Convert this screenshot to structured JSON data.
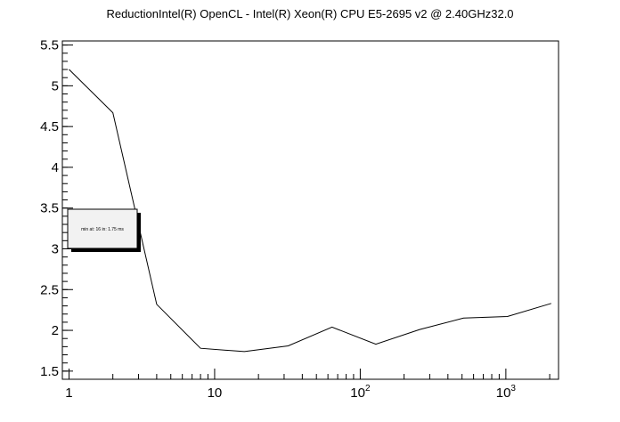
{
  "chart_data": {
    "type": "line",
    "title": "ReductionIntel(R) OpenCL -       Intel(R) Xeon(R) CPU E5-2695 v2 @ 2.40GHz32.0",
    "xlabel": "",
    "ylabel": "",
    "x_scale": "log",
    "xlim": [
      0.9,
      2300
    ],
    "ylim": [
      1.4,
      5.55
    ],
    "x_ticks": [
      {
        "value": 1,
        "base": "1",
        "exp": ""
      },
      {
        "value": 10,
        "base": "10",
        "exp": ""
      },
      {
        "value": 100,
        "base": "10",
        "exp": "2"
      },
      {
        "value": 1000,
        "base": "10",
        "exp": "3"
      }
    ],
    "y_ticks": [
      1.5,
      2,
      2.5,
      3,
      3.5,
      4,
      4.5,
      5,
      5.5
    ],
    "y_tick_labels": [
      "1.5",
      "2",
      "2.5",
      "3",
      "3.5",
      "4",
      "4.5",
      "5",
      "5.5"
    ],
    "grid": false,
    "legend_text": "min at: 16 in: 1.75 ms",
    "series": [
      {
        "x": [
          1,
          2,
          4,
          8,
          16,
          32,
          64,
          128,
          256,
          512,
          1024,
          2048
        ],
        "y": [
          5.2,
          4.67,
          2.32,
          1.78,
          1.74,
          1.81,
          2.04,
          1.83,
          2.01,
          2.15,
          2.17,
          2.33
        ]
      }
    ]
  }
}
